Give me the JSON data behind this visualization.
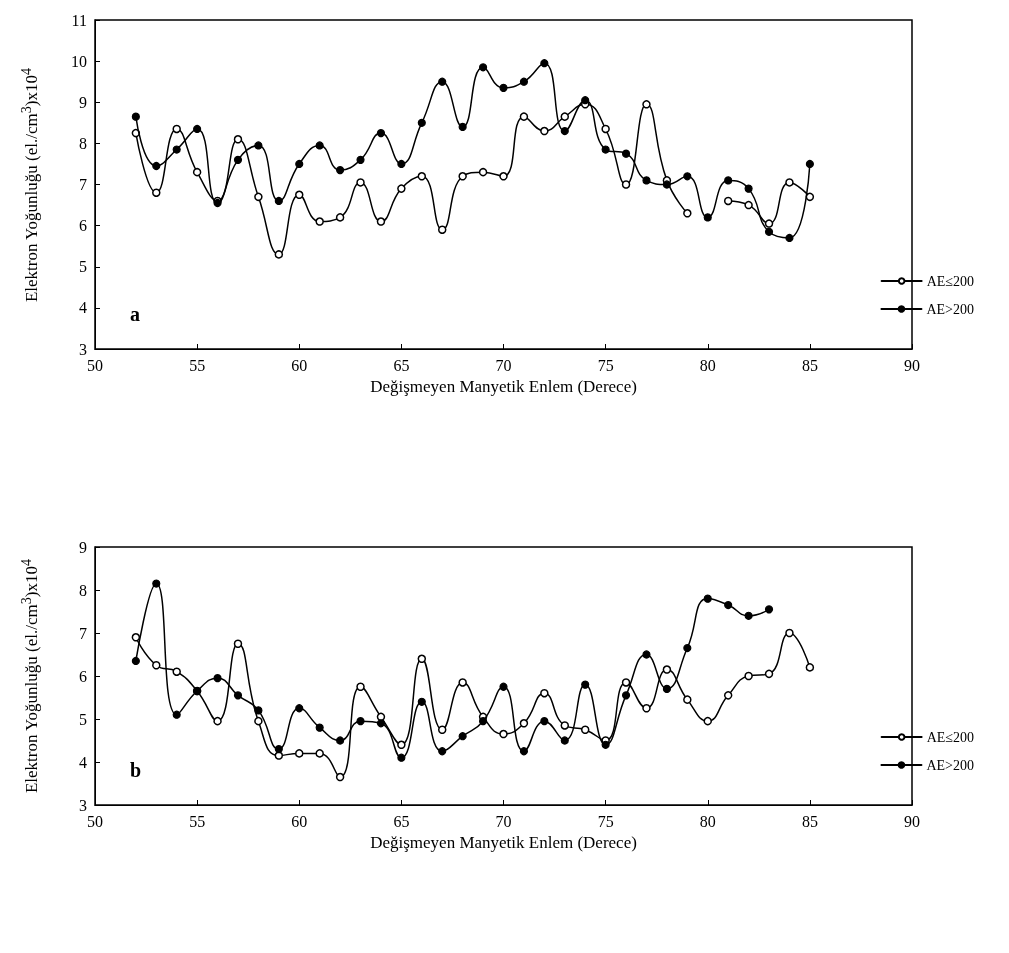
{
  "chart_data": [
    {
      "type": "line",
      "xlabel": "Değişmeyen Manyetik Enlem (Derece)",
      "ylabel": "Elektron Yoğunluğu (el./cm$^{3}$)x10$^{4}$",
      "annotations": [
        "a"
      ],
      "x": [
        52,
        53,
        54,
        55,
        56,
        57,
        58,
        59,
        60,
        61,
        62,
        63,
        64,
        65,
        66,
        67,
        68,
        69,
        70,
        71,
        72,
        73,
        74,
        75,
        76,
        77,
        78,
        79,
        80,
        81,
        82,
        83,
        84,
        85
      ],
      "series": [
        {
          "name": "AE≤200",
          "color": "#000000",
          "values": [
            8.25,
            6.8,
            8.35,
            7.3,
            6.6,
            8.1,
            6.7,
            5.3,
            6.75,
            6.1,
            6.2,
            7.05,
            6.1,
            6.9,
            7.2,
            5.9,
            7.2,
            7.3,
            7.2,
            8.65,
            8.3,
            8.65,
            8.95,
            8.35,
            7.0,
            8.95,
            7.1,
            6.3,
            null,
            6.6,
            6.5,
            6.05,
            7.05,
            6.7
          ]
        },
        {
          "name": "AE>200",
          "color": "#000000",
          "values": [
            8.65,
            7.45,
            7.85,
            8.35,
            6.55,
            7.6,
            7.95,
            6.6,
            7.5,
            7.95,
            7.35,
            7.6,
            8.25,
            7.5,
            8.5,
            9.5,
            8.4,
            9.85,
            9.35,
            9.5,
            9.95,
            8.3,
            9.05,
            7.85,
            7.75,
            7.1,
            7.0,
            7.2,
            6.2,
            7.1,
            6.9,
            5.85,
            5.7,
            7.5
          ]
        }
      ],
      "xlim": [
        50,
        90
      ],
      "xticks": [
        50,
        55,
        60,
        65,
        70,
        75,
        80,
        85,
        90
      ],
      "ylim": [
        3,
        11
      ],
      "yticks": [
        3,
        4,
        5,
        6,
        7,
        8,
        9,
        10,
        11
      ],
      "grid": false,
      "legend": "bottom right",
      "marker": "circle",
      "line_style": "solid"
    },
    {
      "type": "line",
      "xlabel": "Değişmeyen Manyetik Enlem (Derece)",
      "ylabel": "Elektron Yoğunluğu (el./cm$^{3}$)x10$^{4}$",
      "annotations": [
        "b"
      ],
      "x": [
        52,
        53,
        54,
        55,
        56,
        57,
        58,
        59,
        60,
        61,
        62,
        63,
        64,
        65,
        66,
        67,
        68,
        69,
        70,
        71,
        72,
        73,
        74,
        75,
        76,
        77,
        78,
        79,
        80,
        81,
        82,
        83,
        84,
        85
      ],
      "series": [
        {
          "name": "AE≤200",
          "color": "#000000",
          "values": [
            6.9,
            6.25,
            6.1,
            5.65,
            4.95,
            6.75,
            4.95,
            4.15,
            4.2,
            4.2,
            3.65,
            5.75,
            5.05,
            4.4,
            6.4,
            4.75,
            5.85,
            5.05,
            4.65,
            4.9,
            5.6,
            4.85,
            4.75,
            4.5,
            5.85,
            5.25,
            6.15,
            5.45,
            4.95,
            5.55,
            6.0,
            6.05,
            7.0,
            6.2
          ]
        },
        {
          "name": "AE>200",
          "color": "#000000",
          "values": [
            6.35,
            8.15,
            5.1,
            5.65,
            5.95,
            5.55,
            5.2,
            4.3,
            5.25,
            4.8,
            4.5,
            4.95,
            4.9,
            4.1,
            5.4,
            4.25,
            4.6,
            4.95,
            5.75,
            4.25,
            4.95,
            4.5,
            5.8,
            4.4,
            5.55,
            6.5,
            5.7,
            6.65,
            7.8,
            7.65,
            7.4,
            7.55,
            null,
            null
          ]
        }
      ],
      "xlim": [
        50,
        90
      ],
      "xticks": [
        50,
        55,
        60,
        65,
        70,
        75,
        80,
        85,
        90
      ],
      "ylim": [
        3,
        9
      ],
      "yticks": [
        3,
        4,
        5,
        6,
        7,
        8,
        9
      ],
      "grid": false,
      "legend": "bottom right",
      "marker": "circle",
      "line_style": "solid"
    }
  ]
}
